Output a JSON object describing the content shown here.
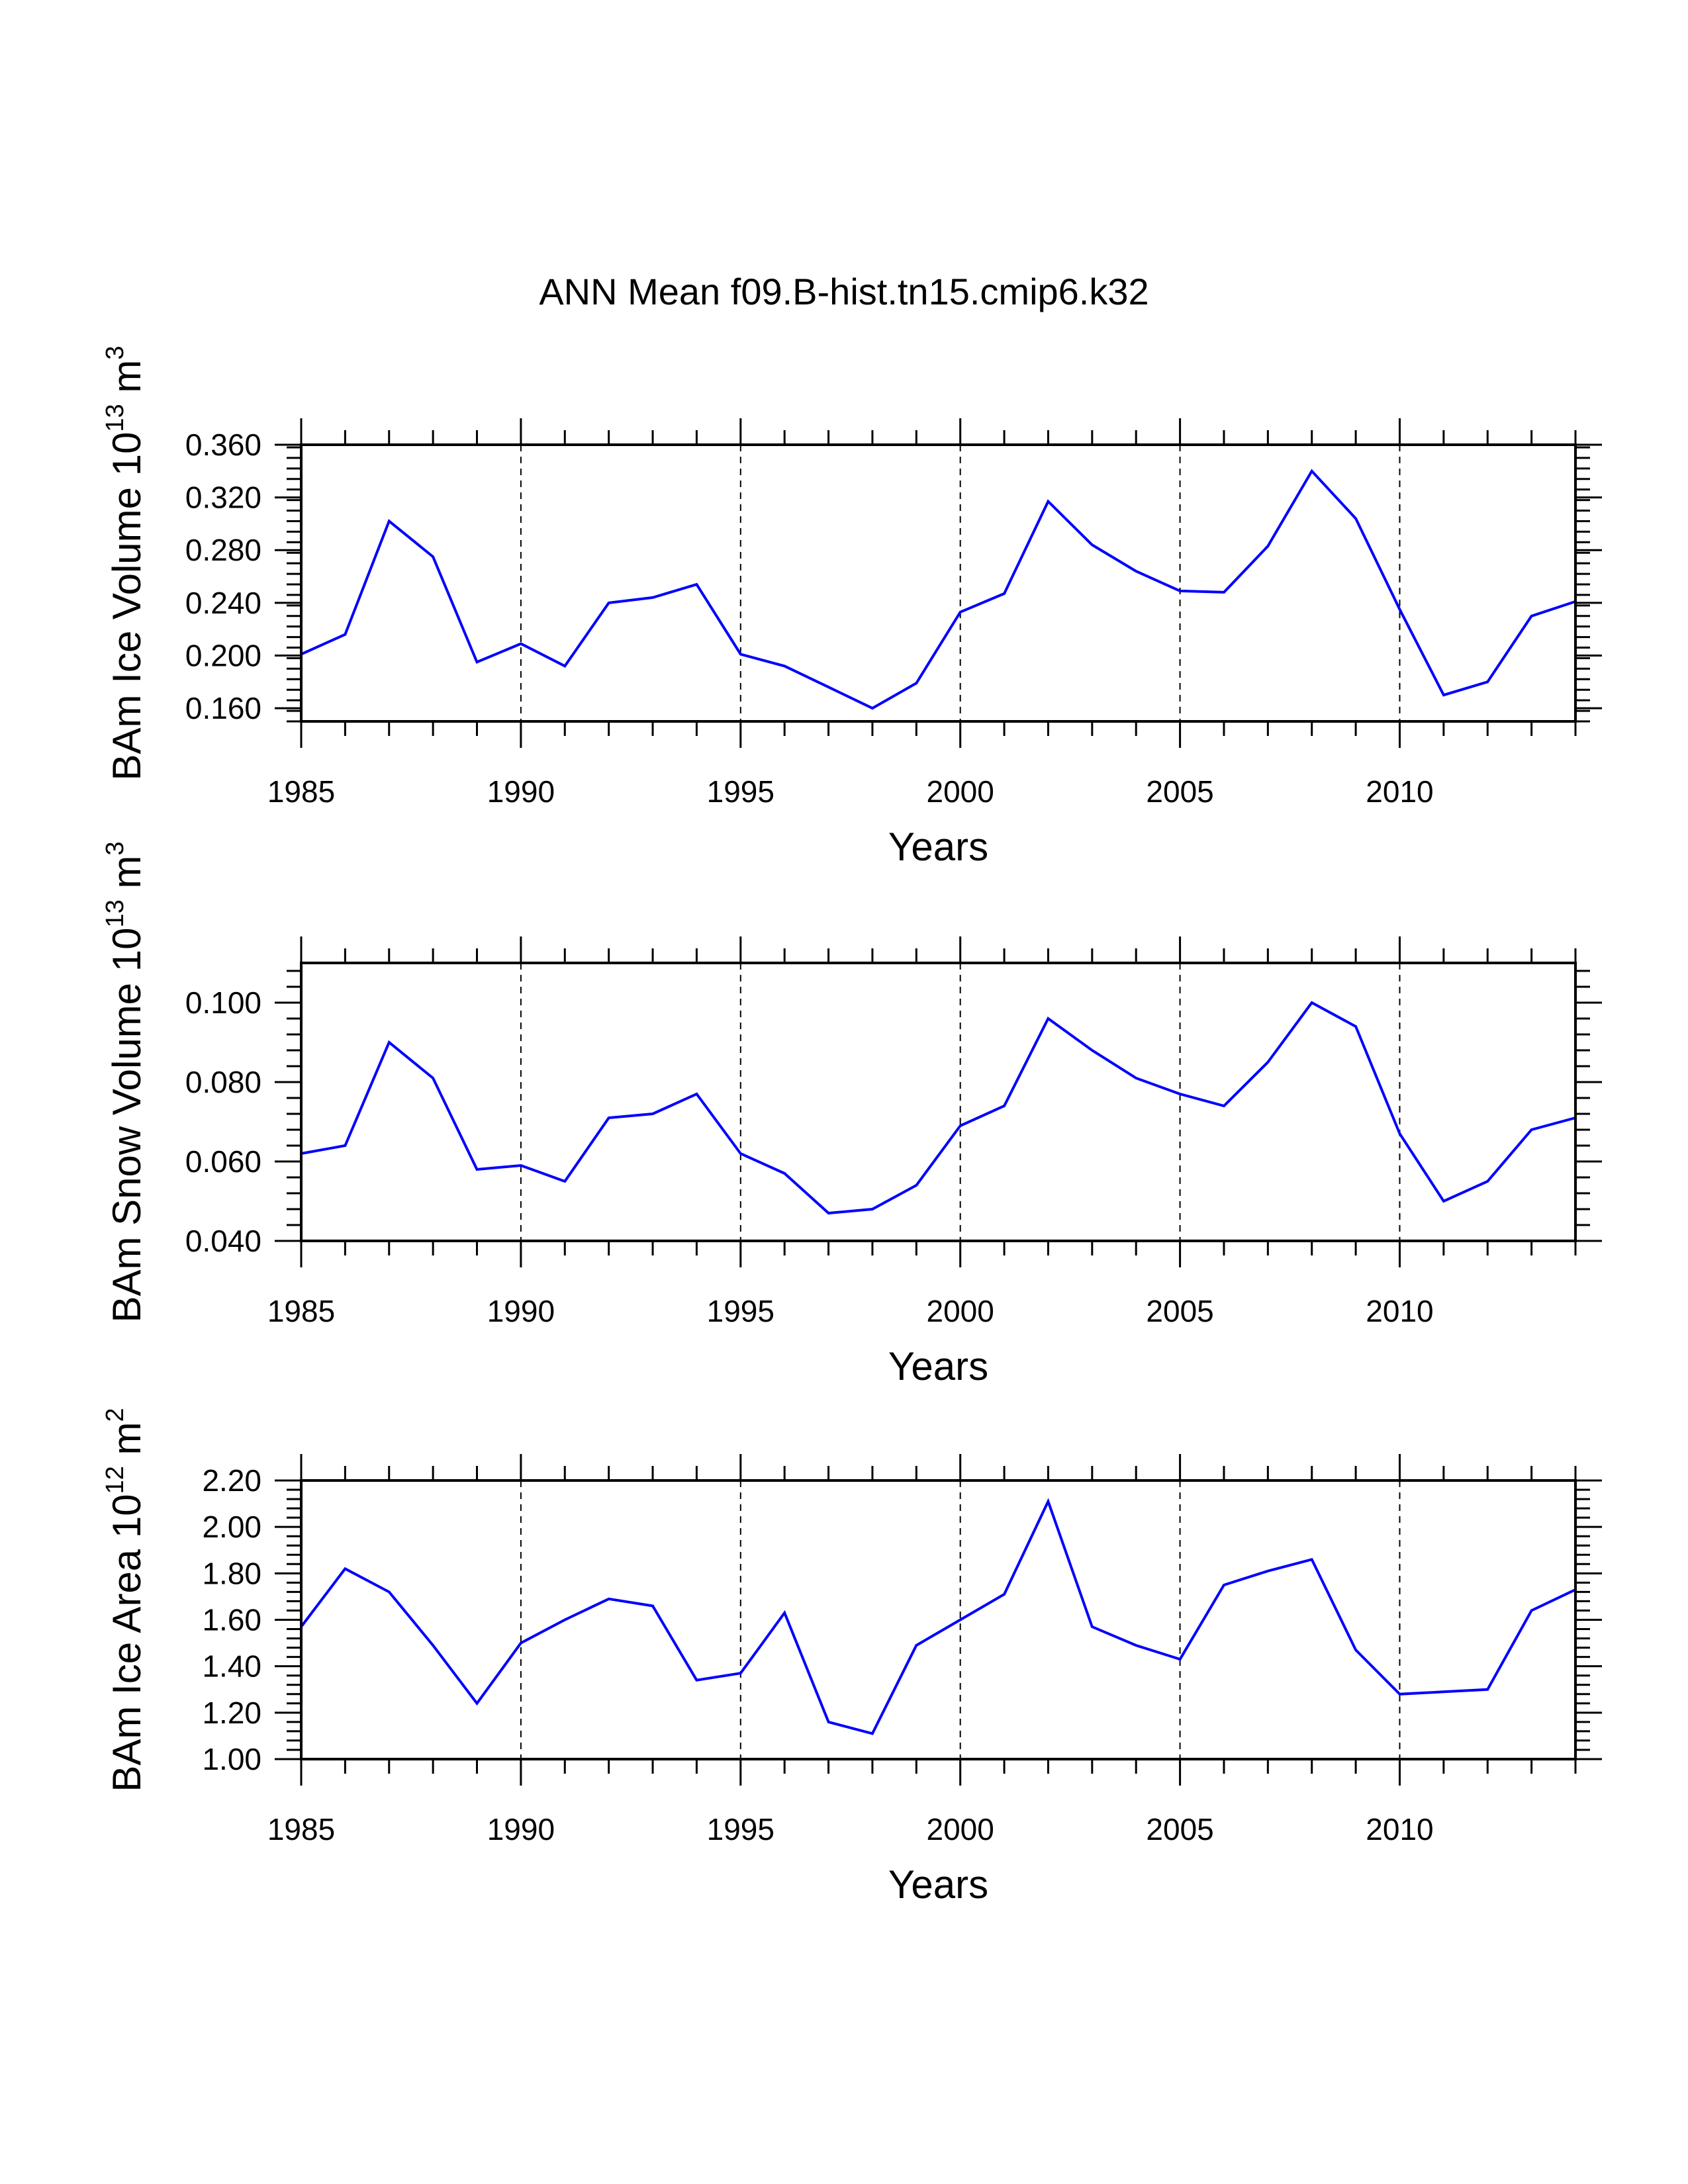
{
  "title": "ANN Mean f09.B-hist.tn15.cmip6.k32",
  "line_color": "#0000ff",
  "chart_data": [
    {
      "type": "line",
      "ylabel_main": "BAm Ice Volume 10",
      "ylabel_exp": "13",
      "ylabel_unit": "m",
      "ylabel_unit_exp": "3",
      "xlabel": "Years",
      "xlim": [
        1985,
        2014
      ],
      "ylim": [
        0.15,
        0.36
      ],
      "xticks": [
        "1985",
        "1990",
        "1995",
        "2000",
        "2005",
        "2010"
      ],
      "yticks": [
        "0.160",
        "0.200",
        "0.240",
        "0.280",
        "0.320",
        "0.360"
      ],
      "years": [
        1985,
        1986,
        1987,
        1988,
        1989,
        1990,
        1991,
        1992,
        1993,
        1994,
        1995,
        1996,
        1997,
        1998,
        1999,
        2000,
        2001,
        2002,
        2003,
        2004,
        2005,
        2006,
        2007,
        2008,
        2009,
        2010,
        2011,
        2012,
        2013,
        2014
      ],
      "values": [
        0.201,
        0.216,
        0.302,
        0.275,
        0.195,
        0.209,
        0.192,
        0.24,
        0.244,
        0.254,
        0.201,
        0.192,
        0.176,
        0.16,
        0.179,
        0.233,
        0.247,
        0.317,
        0.284,
        0.264,
        0.249,
        0.248,
        0.283,
        0.34,
        0.304,
        0.235,
        0.17,
        0.18,
        0.23,
        0.241
      ]
    },
    {
      "type": "line",
      "ylabel_main": "BAm Snow Volume 10",
      "ylabel_exp": "13",
      "ylabel_unit": "m",
      "ylabel_unit_exp": "3",
      "xlabel": "Years",
      "xlim": [
        1985,
        2014
      ],
      "ylim": [
        0.04,
        0.11
      ],
      "xticks": [
        "1985",
        "1990",
        "1995",
        "2000",
        "2005",
        "2010"
      ],
      "yticks": [
        "0.040",
        "0.060",
        "0.080",
        "0.100"
      ],
      "years": [
        1985,
        1986,
        1987,
        1988,
        1989,
        1990,
        1991,
        1992,
        1993,
        1994,
        1995,
        1996,
        1997,
        1998,
        1999,
        2000,
        2001,
        2002,
        2003,
        2004,
        2005,
        2006,
        2007,
        2008,
        2009,
        2010,
        2011,
        2012,
        2013,
        2014
      ],
      "values": [
        0.062,
        0.064,
        0.09,
        0.081,
        0.058,
        0.059,
        0.055,
        0.071,
        0.072,
        0.077,
        0.062,
        0.057,
        0.047,
        0.048,
        0.054,
        0.069,
        0.074,
        0.096,
        0.088,
        0.081,
        0.077,
        0.074,
        0.085,
        0.1,
        0.094,
        0.067,
        0.05,
        0.055,
        0.068,
        0.071
      ]
    },
    {
      "type": "line",
      "ylabel_main": "BAm Ice Area 10",
      "ylabel_exp": "12",
      "ylabel_unit": "m",
      "ylabel_unit_exp": "2",
      "xlabel": "Years",
      "xlim": [
        1985,
        2014
      ],
      "ylim": [
        1.0,
        2.2
      ],
      "xticks": [
        "1985",
        "1990",
        "1995",
        "2000",
        "2005",
        "2010"
      ],
      "yticks": [
        "1.00",
        "1.20",
        "1.40",
        "1.60",
        "1.80",
        "2.00",
        "2.20"
      ],
      "years": [
        1985,
        1986,
        1987,
        1988,
        1989,
        1990,
        1991,
        1992,
        1993,
        1994,
        1995,
        1996,
        1997,
        1998,
        1999,
        2000,
        2001,
        2002,
        2003,
        2004,
        2005,
        2006,
        2007,
        2008,
        2009,
        2010,
        2011,
        2012,
        2013,
        2014
      ],
      "values": [
        1.57,
        1.82,
        1.72,
        1.49,
        1.24,
        1.5,
        1.6,
        1.69,
        1.66,
        1.34,
        1.37,
        1.63,
        1.16,
        1.11,
        1.49,
        1.6,
        1.71,
        2.11,
        1.57,
        1.49,
        1.43,
        1.75,
        1.81,
        1.86,
        1.47,
        1.28,
        1.29,
        1.3,
        1.64,
        1.73
      ]
    }
  ]
}
